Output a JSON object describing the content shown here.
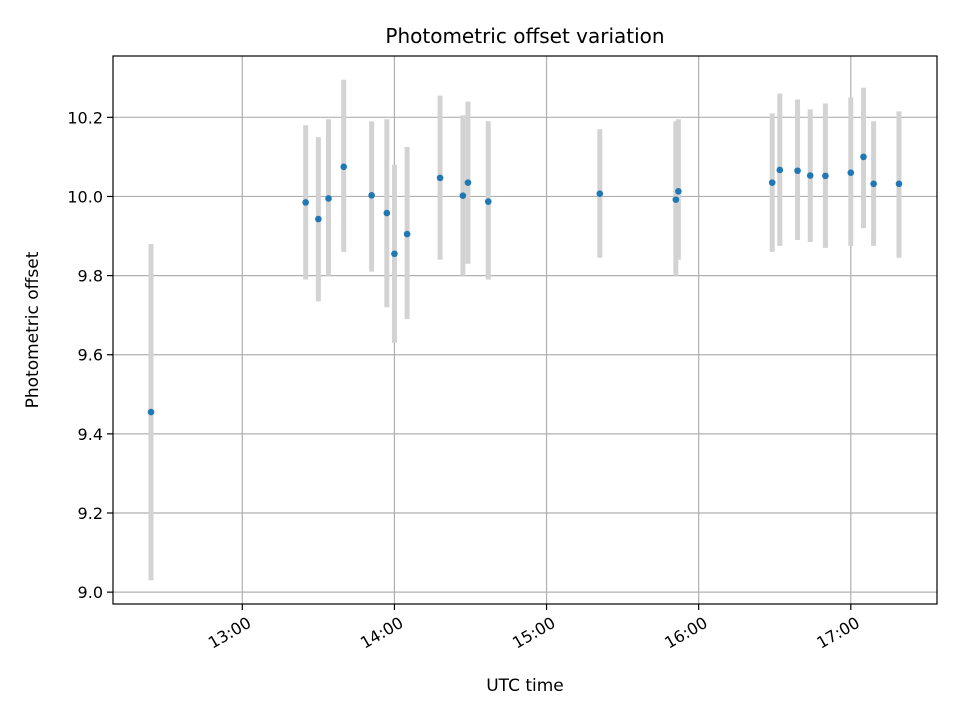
{
  "chart_data": {
    "type": "scatter",
    "title": "Photometric offset variation",
    "xlabel": "UTC time",
    "ylabel": "Photometric offset",
    "x_unit": "UTC time (HH:MM)",
    "xlim": [
      "12:09",
      "17:34"
    ],
    "ylim": [
      8.97,
      10.355
    ],
    "x_ticks": [
      "13:00",
      "14:00",
      "15:00",
      "16:00",
      "17:00"
    ],
    "y_ticks": [
      9.0,
      9.2,
      9.4,
      9.6,
      9.8,
      10.0,
      10.2
    ],
    "y_tick_labels": [
      "9.0",
      "9.2",
      "9.4",
      "9.6",
      "9.8",
      "10.0",
      "10.2"
    ],
    "grid": true,
    "x_tick_rotation": "30deg",
    "colors": {
      "point": "#1f77b4",
      "errorbar": "#d3d3d3",
      "grid": "#b0b0b0"
    },
    "points": [
      {
        "x": "12:24",
        "y": 9.455,
        "ymin": 9.03,
        "ymax": 9.88
      },
      {
        "x": "13:25",
        "y": 9.985,
        "ymin": 9.79,
        "ymax": 10.18
      },
      {
        "x": "13:30",
        "y": 9.943,
        "ymin": 9.735,
        "ymax": 10.15
      },
      {
        "x": "13:34",
        "y": 9.995,
        "ymin": 9.8,
        "ymax": 10.195
      },
      {
        "x": "13:40",
        "y": 10.075,
        "ymin": 9.86,
        "ymax": 10.295
      },
      {
        "x": "13:51",
        "y": 10.003,
        "ymin": 9.81,
        "ymax": 10.19
      },
      {
        "x": "13:57",
        "y": 9.958,
        "ymin": 9.72,
        "ymax": 10.195
      },
      {
        "x": "14:00",
        "y": 9.855,
        "ymin": 9.63,
        "ymax": 10.08
      },
      {
        "x": "14:05",
        "y": 9.905,
        "ymin": 9.69,
        "ymax": 10.125
      },
      {
        "x": "14:18",
        "y": 10.047,
        "ymin": 9.84,
        "ymax": 10.255
      },
      {
        "x": "14:27",
        "y": 10.002,
        "ymin": 9.8,
        "ymax": 10.205
      },
      {
        "x": "14:29",
        "y": 10.035,
        "ymin": 9.83,
        "ymax": 10.24
      },
      {
        "x": "14:37",
        "y": 9.987,
        "ymin": 9.79,
        "ymax": 10.19
      },
      {
        "x": "15:21",
        "y": 10.007,
        "ymin": 9.845,
        "ymax": 10.17
      },
      {
        "x": "15:51",
        "y": 9.992,
        "ymin": 9.8,
        "ymax": 10.19
      },
      {
        "x": "15:52",
        "y": 10.013,
        "ymin": 9.84,
        "ymax": 10.195
      },
      {
        "x": "16:29",
        "y": 10.035,
        "ymin": 9.86,
        "ymax": 10.21
      },
      {
        "x": "16:32",
        "y": 10.067,
        "ymin": 9.875,
        "ymax": 10.26
      },
      {
        "x": "16:39",
        "y": 10.065,
        "ymin": 9.89,
        "ymax": 10.245
      },
      {
        "x": "16:44",
        "y": 10.053,
        "ymin": 9.885,
        "ymax": 10.22
      },
      {
        "x": "16:50",
        "y": 10.052,
        "ymin": 9.87,
        "ymax": 10.235
      },
      {
        "x": "17:00",
        "y": 10.06,
        "ymin": 9.875,
        "ymax": 10.25
      },
      {
        "x": "17:05",
        "y": 10.1,
        "ymin": 9.92,
        "ymax": 10.275
      },
      {
        "x": "17:09",
        "y": 10.032,
        "ymin": 9.875,
        "ymax": 10.19
      },
      {
        "x": "17:19",
        "y": 10.032,
        "ymin": 9.845,
        "ymax": 10.215
      }
    ]
  }
}
